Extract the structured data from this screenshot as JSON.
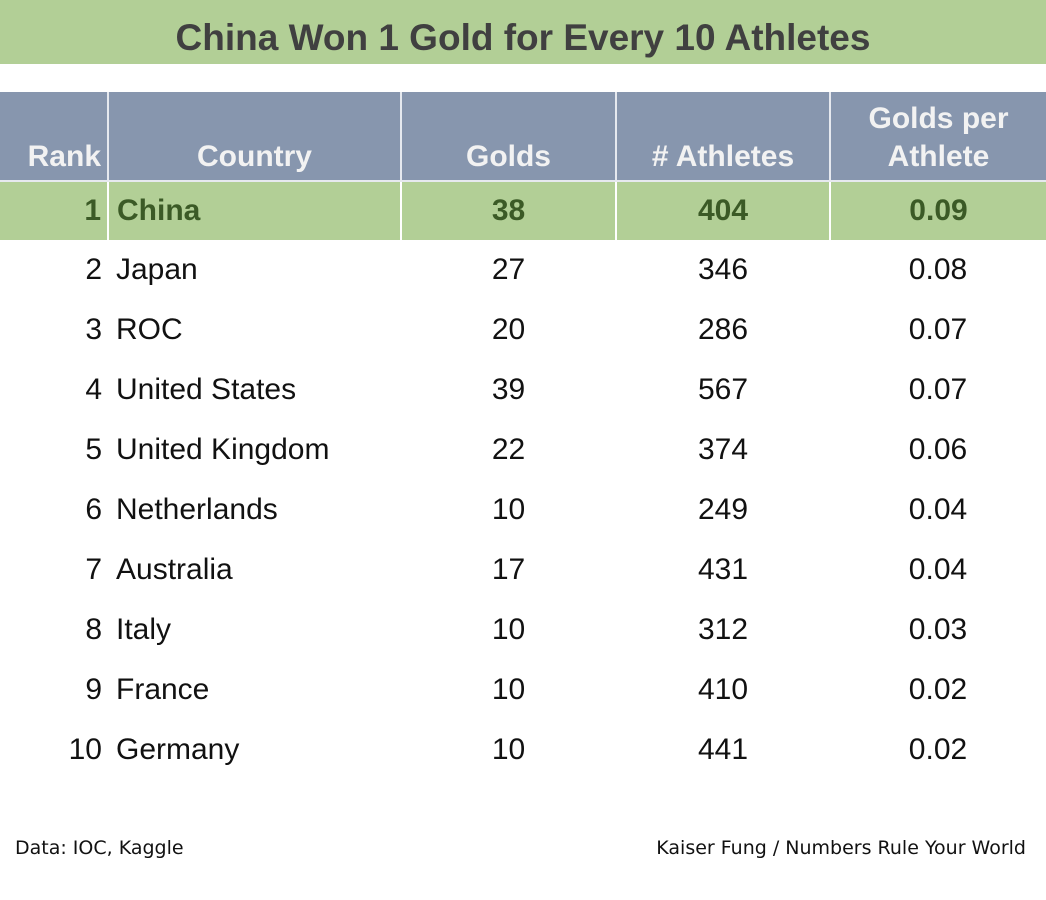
{
  "chart_data": {
    "type": "table",
    "title": "China Won 1 Gold for Every 10 Athletes",
    "columns": [
      "Rank",
      "Country",
      "Golds",
      "# Athletes",
      "Golds per Athlete"
    ],
    "rows": [
      {
        "rank": "1",
        "country": "China",
        "golds": "38",
        "athletes": "404",
        "gpa": "0.09"
      },
      {
        "rank": "2",
        "country": "Japan",
        "golds": "27",
        "athletes": "346",
        "gpa": "0.08"
      },
      {
        "rank": "3",
        "country": "ROC",
        "golds": "20",
        "athletes": "286",
        "gpa": "0.07"
      },
      {
        "rank": "4",
        "country": "United States",
        "golds": "39",
        "athletes": "567",
        "gpa": "0.07"
      },
      {
        "rank": "5",
        "country": "United Kingdom",
        "golds": "22",
        "athletes": "374",
        "gpa": "0.06"
      },
      {
        "rank": "6",
        "country": "Netherlands",
        "golds": "10",
        "athletes": "249",
        "gpa": "0.04"
      },
      {
        "rank": "7",
        "country": "Australia",
        "golds": "17",
        "athletes": "431",
        "gpa": "0.04"
      },
      {
        "rank": "8",
        "country": "Italy",
        "golds": "10",
        "athletes": "312",
        "gpa": "0.03"
      },
      {
        "rank": "9",
        "country": "France",
        "golds": "10",
        "athletes": "410",
        "gpa": "0.02"
      },
      {
        "rank": "10",
        "country": "Germany",
        "golds": "10",
        "athletes": "441",
        "gpa": "0.02"
      }
    ],
    "highlight_row": 0,
    "colors": {
      "highlight": "#b2cf96",
      "header": "#8796ae",
      "highlight_text": "#3b5a26"
    }
  },
  "footer": {
    "source": "Data: IOC, Kaggle",
    "credit": "Kaiser Fung / Numbers Rule Your World"
  }
}
